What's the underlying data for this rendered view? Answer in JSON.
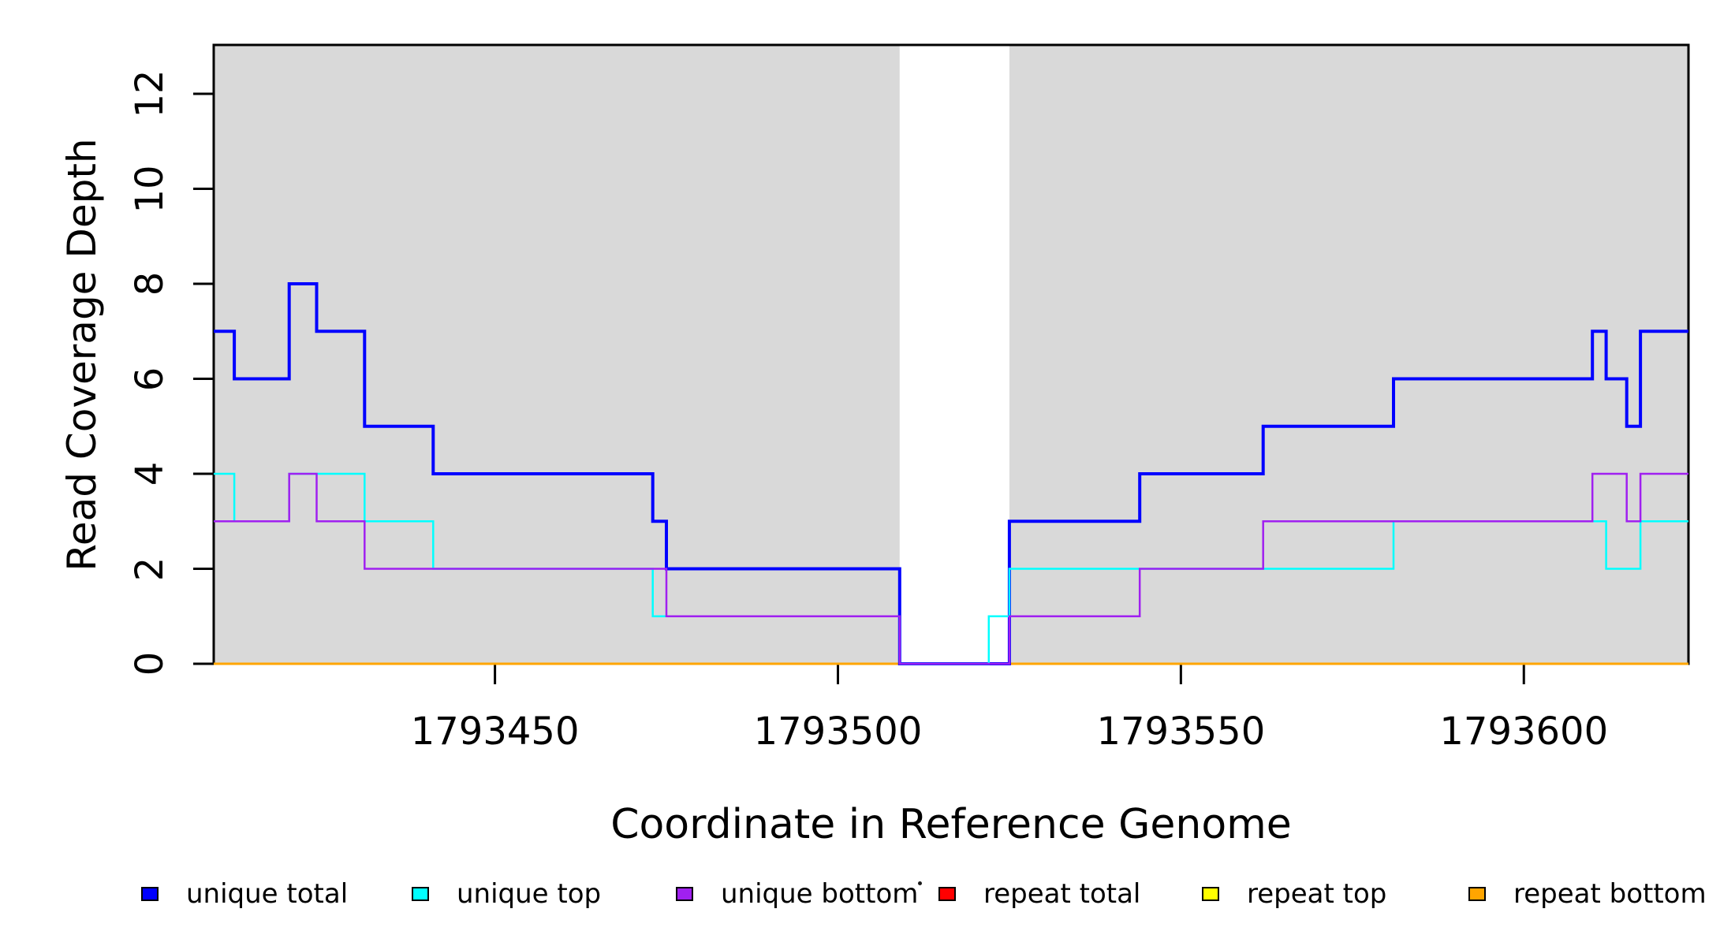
{
  "figure": {
    "x_axis_title": "Coordinate in Reference Genome",
    "y_axis_title": "Read Coverage Depth"
  },
  "chart_data": {
    "type": "line",
    "subtype": "step-after-coverage-plot",
    "title": "",
    "xlabel": "Coordinate in Reference Genome",
    "ylabel": "Read Coverage Depth",
    "x_domain": [
      1793409,
      1793624
    ],
    "y_domain": [
      0,
      13
    ],
    "x_ticks": [
      1793450,
      1793500,
      1793550,
      1793600
    ],
    "y_ticks": [
      0,
      2,
      4,
      6,
      8,
      10,
      12
    ],
    "grid": false,
    "plot_box_color": "#000000",
    "shading": {
      "color": "#D9D9D9",
      "regions": [
        [
          1793409,
          1793509
        ],
        [
          1793525,
          1793624
        ]
      ]
    },
    "series": [
      {
        "name": "repeat total",
        "color": "#FF0000",
        "line_width": 3,
        "points": [
          [
            1793409,
            0
          ],
          [
            1793624,
            0
          ]
        ]
      },
      {
        "name": "repeat top",
        "color": "#FFFF00",
        "line_width": 3,
        "points": [
          [
            1793409,
            0
          ],
          [
            1793624,
            0
          ]
        ]
      },
      {
        "name": "repeat bottom",
        "color": "#FFA500",
        "line_width": 3,
        "points": [
          [
            1793409,
            0
          ],
          [
            1793624,
            0
          ]
        ]
      },
      {
        "name": "unique total",
        "color": "#0000FF",
        "line_width": 4,
        "points": [
          [
            1793409,
            7
          ],
          [
            1793412,
            6
          ],
          [
            1793420,
            8
          ],
          [
            1793424,
            7
          ],
          [
            1793431,
            5
          ],
          [
            1793441,
            4
          ],
          [
            1793473,
            3
          ],
          [
            1793475,
            2
          ],
          [
            1793509,
            0
          ],
          [
            1793525,
            3
          ],
          [
            1793544,
            4
          ],
          [
            1793562,
            5
          ],
          [
            1793581,
            6
          ],
          [
            1793610,
            7
          ],
          [
            1793612,
            6
          ],
          [
            1793615,
            5
          ],
          [
            1793617,
            7
          ],
          [
            1793624,
            7
          ]
        ]
      },
      {
        "name": "unique top",
        "color": "#00FFFF",
        "line_width": 2.5,
        "points": [
          [
            1793409,
            4
          ],
          [
            1793412,
            3
          ],
          [
            1793420,
            4
          ],
          [
            1793431,
            3
          ],
          [
            1793441,
            2
          ],
          [
            1793473,
            1
          ],
          [
            1793509,
            0
          ],
          [
            1793522,
            1
          ],
          [
            1793525,
            2
          ],
          [
            1793581,
            3
          ],
          [
            1793612,
            2
          ],
          [
            1793617,
            3
          ],
          [
            1793624,
            3
          ]
        ]
      },
      {
        "name": "unique bottom",
        "color": "#A020F0",
        "line_width": 2.5,
        "points": [
          [
            1793409,
            3
          ],
          [
            1793420,
            4
          ],
          [
            1793424,
            3
          ],
          [
            1793431,
            2
          ],
          [
            1793475,
            1
          ],
          [
            1793509,
            0
          ],
          [
            1793525,
            1
          ],
          [
            1793544,
            2
          ],
          [
            1793562,
            3
          ],
          [
            1793610,
            4
          ],
          [
            1793615,
            3
          ],
          [
            1793617,
            4
          ],
          [
            1793624,
            4
          ]
        ]
      }
    ],
    "legend": {
      "position": "bottom",
      "entries": [
        {
          "label": "unique total",
          "color": "#0000FF"
        },
        {
          "label": "unique top",
          "color": "#00FFFF"
        },
        {
          "label": "unique bottom",
          "color": "#A020F0"
        },
        {
          "label": "repeat total",
          "color": "#FF0000"
        },
        {
          "label": "repeat top",
          "color": "#FFFF00"
        },
        {
          "label": "repeat bottom",
          "color": "#FFA500"
        }
      ]
    }
  }
}
